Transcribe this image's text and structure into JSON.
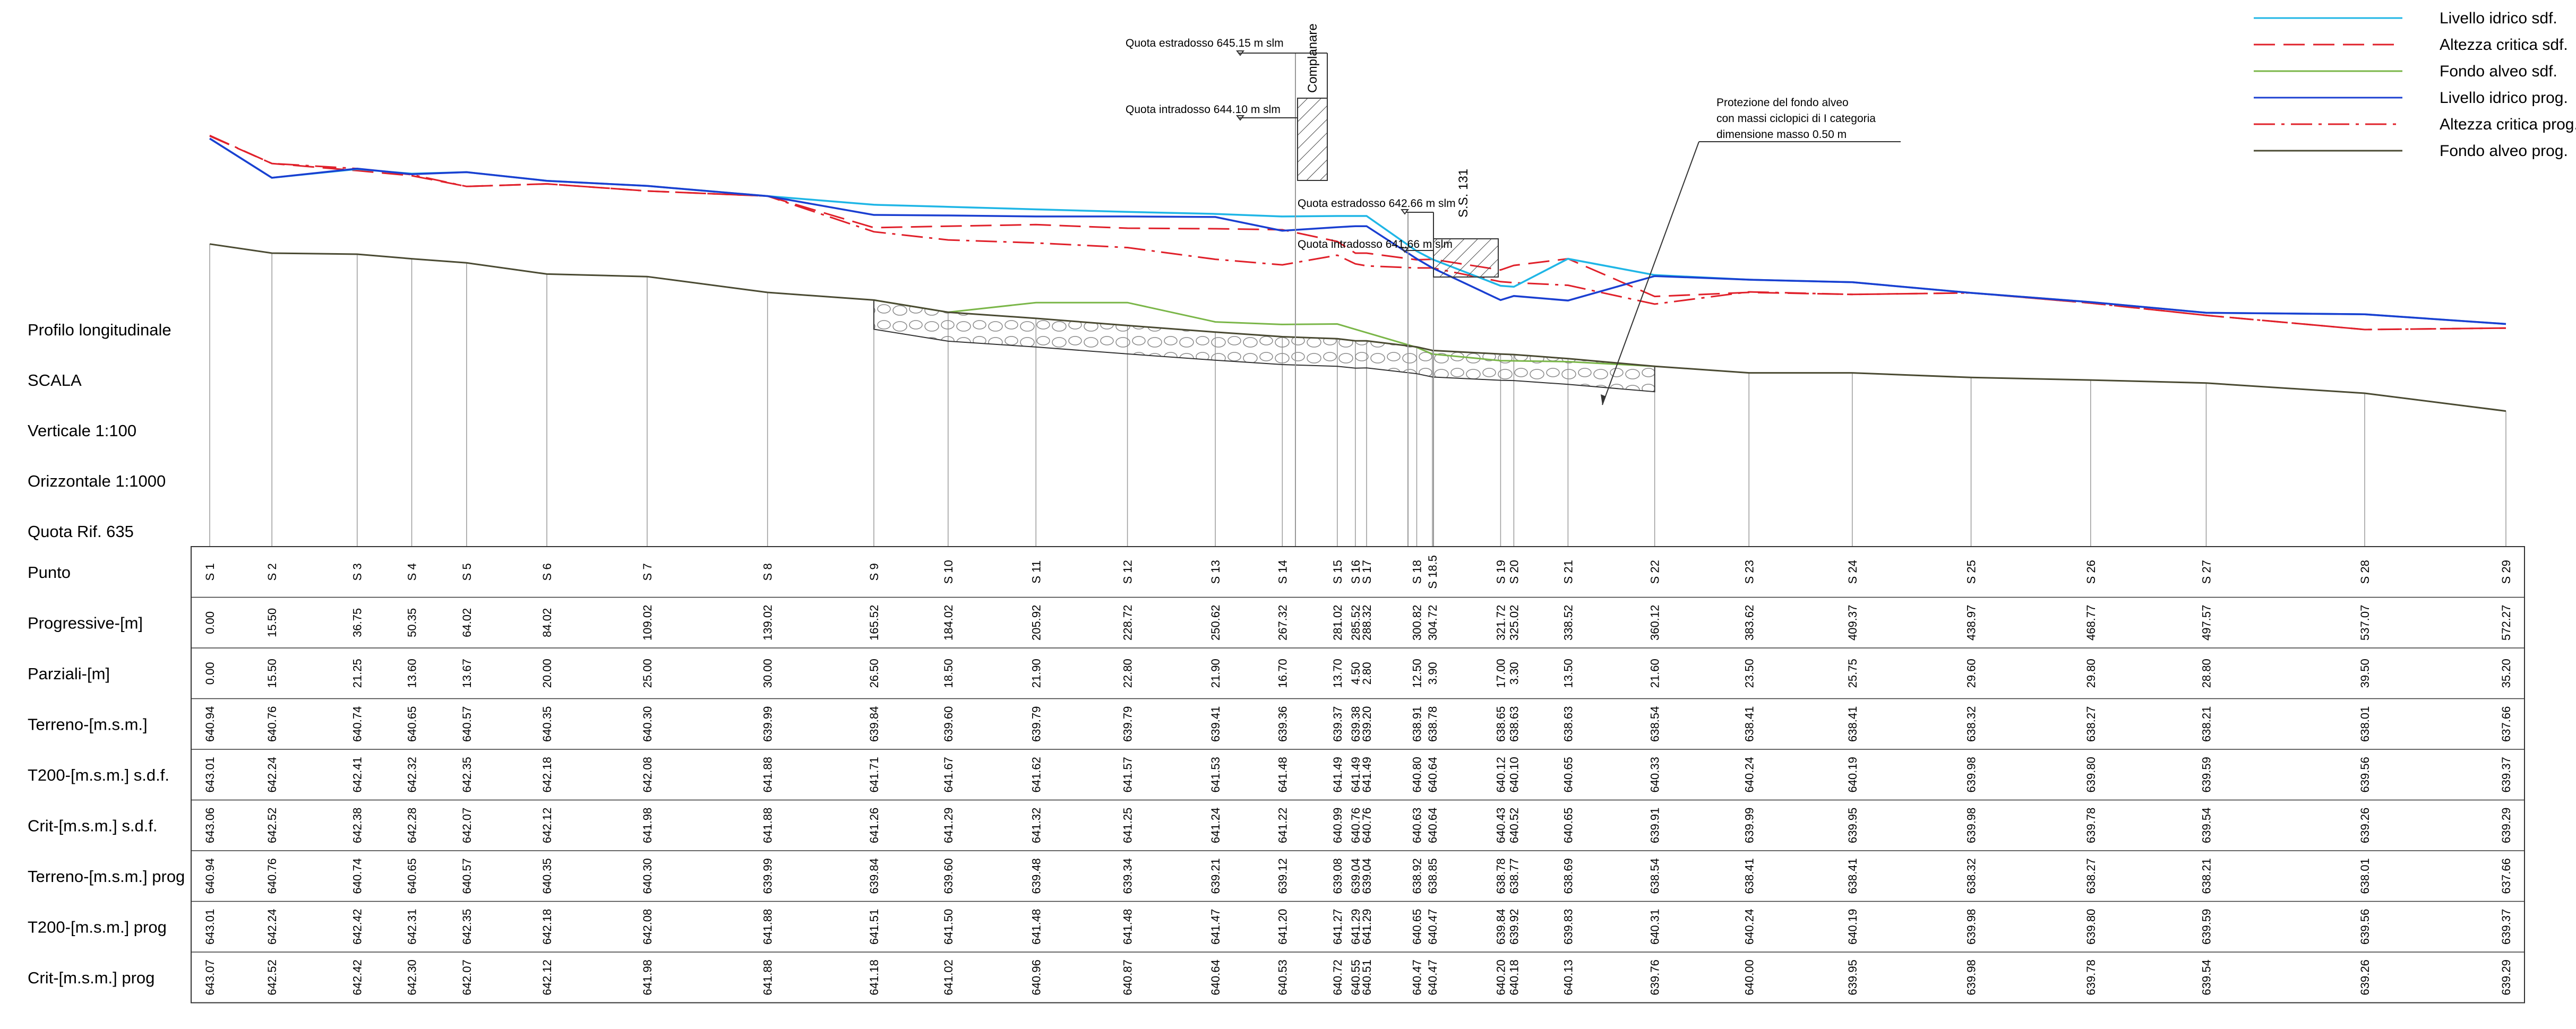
{
  "legend": [
    {
      "label": "Livello idrico sdf.",
      "color": "#1fb6e6",
      "style": "solid"
    },
    {
      "label": "Altezza critica sdf.",
      "color": "#e0202a",
      "style": "dashed"
    },
    {
      "label": "Fondo alveo sdf.",
      "color": "#7ab648",
      "style": "solid"
    },
    {
      "label": "Livello idrico prog.",
      "color": "#1a3fd1",
      "style": "solid"
    },
    {
      "label": "Altezza critica prog.",
      "color": "#e0202a",
      "style": "dashdot"
    },
    {
      "label": "Fondo alveo prog.",
      "color": "#4a4a32",
      "style": "solid"
    }
  ],
  "side_labels": [
    "Profilo longitudinale",
    "SCALA",
    "Verticale 1:100",
    "Orizzontale 1:1000",
    "Quota Rif. 635"
  ],
  "annotations": {
    "complanare": "Complanare",
    "ss131": "S.S. 131",
    "q_estr_1": "Quota estradosso 645.15 m slm",
    "q_intr_1": "Quota intradosso 644.10 m slm",
    "q_estr_2": "Quota estradosso 642.66 m slm",
    "q_intr_2": "Quota intradosso 641.66 m slm",
    "protezione": [
      "Protezione del fondo alveo",
      "con massi ciclopici di I categoria",
      "dimensione masso 0.50 m"
    ]
  },
  "table": {
    "row_headers": [
      "Punto",
      "Progressive-[m]",
      "Parziali-[m]",
      "Terreno-[m.s.m.]",
      "T200-[m.s.m.] s.d.f.",
      "Crit-[m.s.m.] s.d.f.",
      "Terreno-[m.s.m.] prog",
      "T200-[m.s.m.] prog",
      "Crit-[m.s.m.] prog"
    ],
    "points": [
      "S 1",
      "S 2",
      "S 3",
      "S 4",
      "S 5",
      "S 6",
      "S 7",
      "S 8",
      "S 9",
      "S 10",
      "S 11",
      "S 12",
      "S 13",
      "S 14",
      "S 15",
      "S 16",
      "S 17",
      "S 18",
      "S 18.5",
      "S 19",
      "S 20",
      "S 21",
      "S 22",
      "S 23",
      "S 24",
      "S 25",
      "S 26",
      "S 27",
      "S 28",
      "S 29"
    ],
    "progressive": [
      "0.00",
      "15.50",
      "36.75",
      "50.35",
      "64.02",
      "84.02",
      "109.02",
      "139.02",
      "165.52",
      "184.02",
      "205.92",
      "228.72",
      "250.62",
      "267.32",
      "281.02",
      "285.52",
      "288.32",
      "300.82",
      "304.72",
      "321.72",
      "325.02",
      "338.52",
      "360.12",
      "383.62",
      "409.37",
      "438.97",
      "468.77",
      "497.57",
      "537.07",
      "572.27"
    ],
    "parziali": [
      "0.00",
      "15.50",
      "21.25",
      "13.60",
      "13.67",
      "20.00",
      "25.00",
      "30.00",
      "26.50",
      "18.50",
      "21.90",
      "22.80",
      "21.90",
      "16.70",
      "13.70",
      "4.50",
      "2.80",
      "12.50",
      "3.90",
      "17.00",
      "3.30",
      "13.50",
      "21.60",
      "23.50",
      "25.75",
      "29.60",
      "29.80",
      "28.80",
      "39.50",
      "35.20"
    ],
    "terreno_sdf": [
      "640.94",
      "640.76",
      "640.74",
      "640.65",
      "640.57",
      "640.35",
      "640.30",
      "639.99",
      "639.84",
      "639.60",
      "639.79",
      "639.79",
      "639.41",
      "639.36",
      "639.37",
      "639.38",
      "639.20",
      "638.91",
      "638.78",
      "638.65",
      "638.63",
      "638.63",
      "638.54",
      "638.41",
      "638.41",
      "638.32",
      "638.27",
      "638.21",
      "638.01",
      "637.66"
    ],
    "t200_sdf": [
      "643.01",
      "642.24",
      "642.41",
      "642.32",
      "642.35",
      "642.18",
      "642.08",
      "641.88",
      "641.71",
      "641.67",
      "641.62",
      "641.57",
      "641.53",
      "641.48",
      "641.49",
      "641.49",
      "641.49",
      "640.80",
      "640.64",
      "640.12",
      "640.10",
      "640.65",
      "640.33",
      "640.24",
      "640.19",
      "639.98",
      "639.80",
      "639.59",
      "639.56",
      "639.37"
    ],
    "crit_sdf": [
      "643.06",
      "642.52",
      "642.38",
      "642.28",
      "642.07",
      "642.12",
      "641.98",
      "641.88",
      "641.26",
      "641.29",
      "641.32",
      "641.25",
      "641.24",
      "641.22",
      "640.99",
      "640.76",
      "640.76",
      "640.63",
      "640.64",
      "640.43",
      "640.52",
      "640.65",
      "639.91",
      "639.99",
      "639.95",
      "639.98",
      "639.78",
      "639.54",
      "639.26",
      "639.29"
    ],
    "terreno_prog": [
      "640.94",
      "640.76",
      "640.74",
      "640.65",
      "640.57",
      "640.35",
      "640.30",
      "639.99",
      "639.84",
      "639.60",
      "639.48",
      "639.34",
      "639.21",
      "639.12",
      "639.08",
      "639.04",
      "639.04",
      "638.92",
      "638.85",
      "638.78",
      "638.77",
      "638.69",
      "638.54",
      "638.41",
      "638.41",
      "638.32",
      "638.27",
      "638.21",
      "638.01",
      "637.66"
    ],
    "t200_prog": [
      "643.01",
      "642.24",
      "642.42",
      "642.31",
      "642.35",
      "642.18",
      "642.08",
      "641.88",
      "641.51",
      "641.50",
      "641.48",
      "641.48",
      "641.47",
      "641.20",
      "641.27",
      "641.29",
      "641.29",
      "640.65",
      "640.47",
      "639.84",
      "639.92",
      "639.83",
      "640.31",
      "640.24",
      "640.19",
      "639.98",
      "639.80",
      "639.59",
      "639.56",
      "639.37"
    ],
    "crit_prog": [
      "643.07",
      "642.52",
      "642.42",
      "642.30",
      "642.07",
      "642.12",
      "641.98",
      "641.88",
      "641.18",
      "641.02",
      "640.96",
      "640.87",
      "640.64",
      "640.53",
      "640.72",
      "640.55",
      "640.51",
      "640.47",
      "640.47",
      "640.20",
      "640.18",
      "640.13",
      "639.76",
      "640.00",
      "639.95",
      "639.98",
      "639.78",
      "639.54",
      "639.26",
      "639.29"
    ]
  },
  "profile_data": {
    "datum": 635,
    "fondo_sdf_scour_segment": [
      {
        "progressive": 165.52,
        "quota": 639.84
      },
      {
        "progressive": 184.02,
        "quota": 639.6
      },
      {
        "progressive": 205.92,
        "quota": 639.79
      },
      {
        "progressive": 228.72,
        "quota": 639.79
      },
      {
        "progressive": 250.62,
        "quota": 639.41
      },
      {
        "progressive": 267.32,
        "quota": 639.36
      },
      {
        "progressive": 281.02,
        "quota": 639.37
      },
      {
        "progressive": 288.32,
        "quota": 639.2
      },
      {
        "progressive": 300.82,
        "quota": 638.91
      },
      {
        "progressive": 304.72,
        "quota": 638.78
      },
      {
        "progressive": 321.72,
        "quota": 638.65
      },
      {
        "progressive": 338.52,
        "quota": 638.63
      },
      {
        "progressive": 360.12,
        "quota": 638.54
      }
    ]
  },
  "colors": {
    "livello_sdf": "#1fb6e6",
    "crit": "#e0202a",
    "fondo_sdf": "#7ab648",
    "livello_prog": "#1a3fd1",
    "fondo_prog": "#4a4a32",
    "line": "#808080"
  }
}
